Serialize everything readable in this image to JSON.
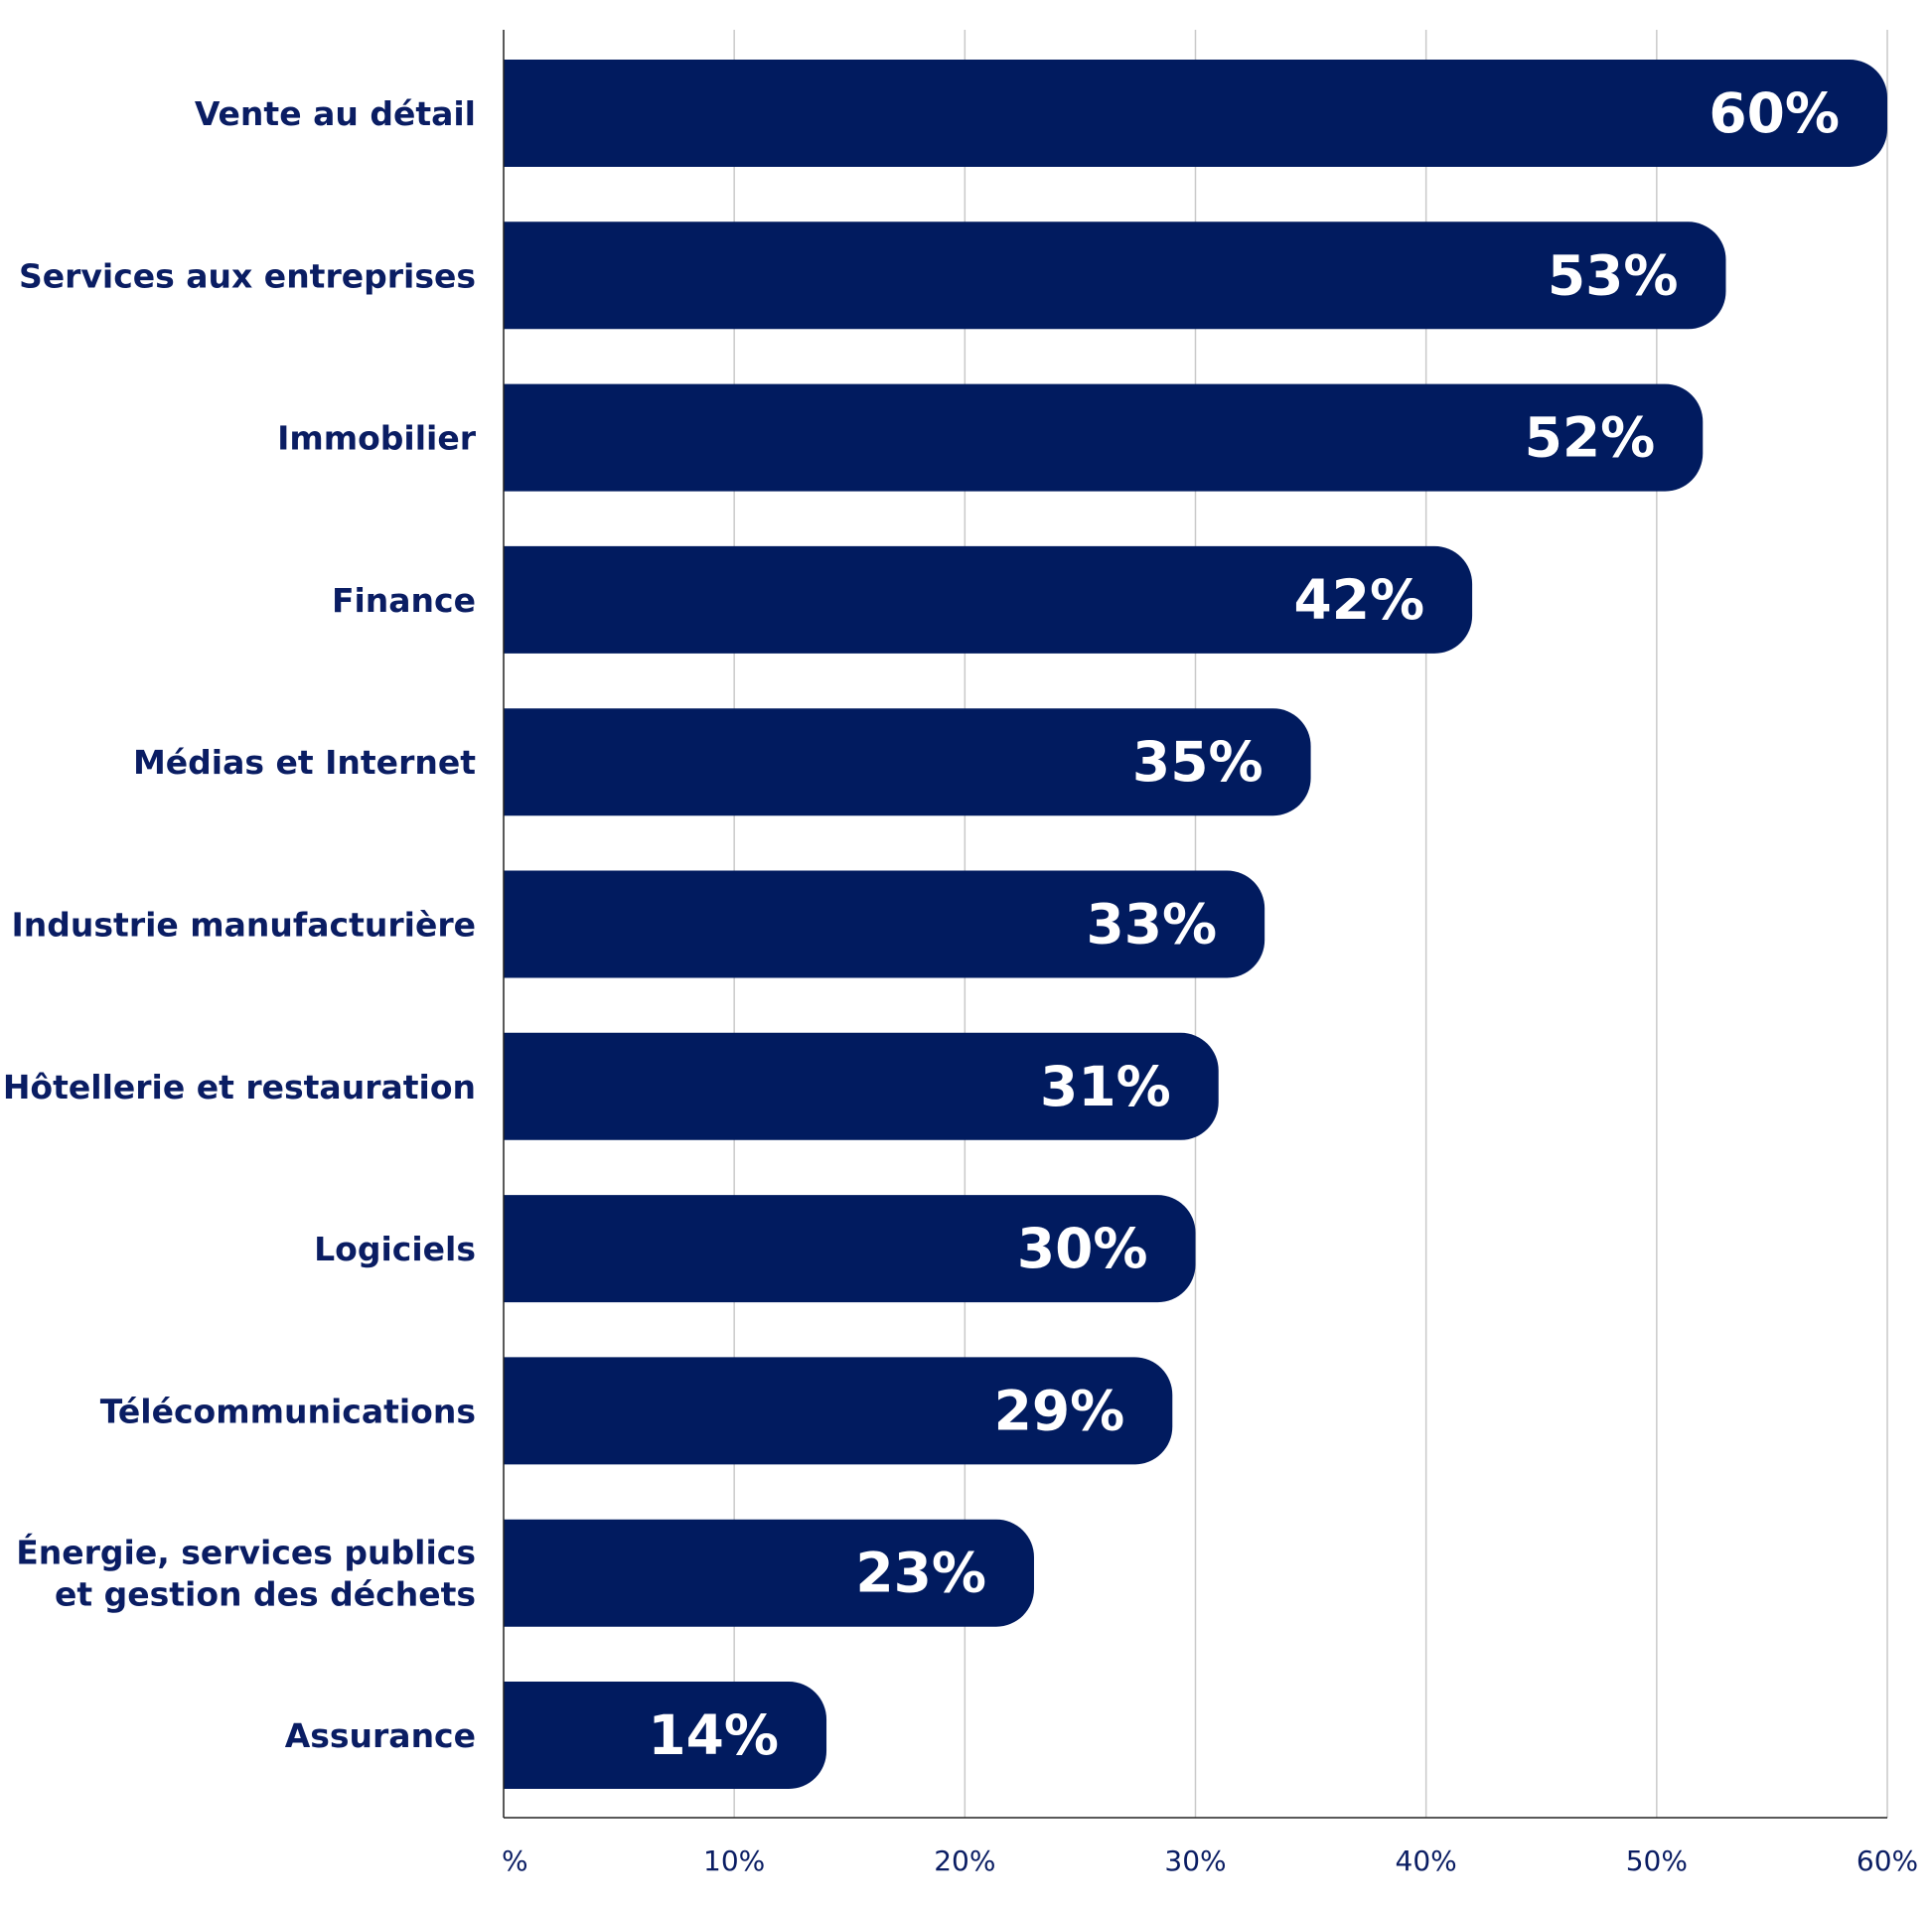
{
  "chart_data": {
    "type": "bar",
    "orientation": "horizontal",
    "categories": [
      [
        "Vente au détail"
      ],
      [
        "Services aux entreprises"
      ],
      [
        "Immobilier"
      ],
      [
        "Finance"
      ],
      [
        "Médias et Internet"
      ],
      [
        "Industrie manufacturière"
      ],
      [
        "Hôtellerie et restauration"
      ],
      [
        "Logiciels"
      ],
      [
        "Télécommunications"
      ],
      [
        "Énergie, services publics",
        "et gestion des déchets"
      ],
      [
        "Assurance"
      ]
    ],
    "values": [
      60,
      53,
      52,
      42,
      35,
      33,
      31,
      30,
      29,
      23,
      14
    ],
    "value_labels": [
      "60%",
      "53%",
      "52%",
      "42%",
      "35%",
      "33%",
      "31%",
      "30%",
      "29%",
      "23%",
      "14%"
    ],
    "x_ticks": [
      0,
      10,
      20,
      30,
      40,
      50,
      60
    ],
    "x_tick_labels": [
      "%",
      "10%",
      "20%",
      "30%",
      "40%",
      "50%",
      "60%"
    ],
    "xlim": [
      0,
      60
    ],
    "grid": true,
    "legend": "none",
    "title": "",
    "xlabel": "",
    "ylabel": "",
    "colors": {
      "bar": "#011b5f",
      "label_text": "#0a1d63",
      "value_text": "#ffffff",
      "grid": "#c9c9c9",
      "axis": "#222222"
    }
  }
}
